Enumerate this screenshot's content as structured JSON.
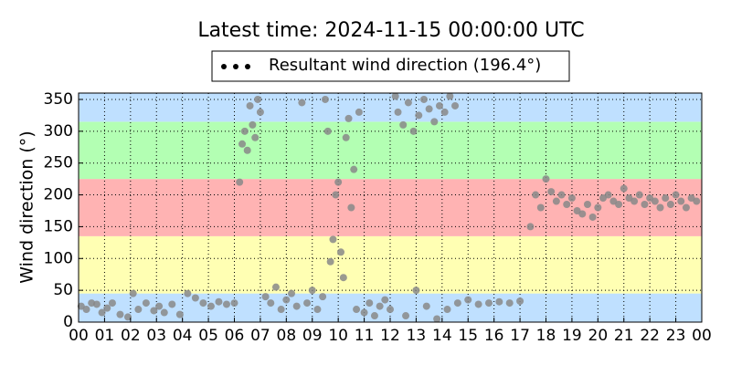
{
  "chart_data": {
    "type": "scatter",
    "title": "Latest time: 2024-11-15 00:00:00 UTC",
    "ylabel": "Wind direction (°)",
    "xlim": [
      0,
      24
    ],
    "ylim": [
      0,
      360
    ],
    "xticks": [
      {
        "value": 0,
        "label": "00"
      },
      {
        "value": 1,
        "label": "01"
      },
      {
        "value": 2,
        "label": "02"
      },
      {
        "value": 3,
        "label": "03"
      },
      {
        "value": 4,
        "label": "04"
      },
      {
        "value": 5,
        "label": "05"
      },
      {
        "value": 6,
        "label": "06"
      },
      {
        "value": 7,
        "label": "07"
      },
      {
        "value": 8,
        "label": "08"
      },
      {
        "value": 9,
        "label": "09"
      },
      {
        "value": 10,
        "label": "10"
      },
      {
        "value": 11,
        "label": "11"
      },
      {
        "value": 12,
        "label": "12"
      },
      {
        "value": 13,
        "label": "13"
      },
      {
        "value": 14,
        "label": "14"
      },
      {
        "value": 15,
        "label": "15"
      },
      {
        "value": 16,
        "label": "16"
      },
      {
        "value": 17,
        "label": "17"
      },
      {
        "value": 18,
        "label": "18"
      },
      {
        "value": 19,
        "label": "19"
      },
      {
        "value": 20,
        "label": "20"
      },
      {
        "value": 21,
        "label": "21"
      },
      {
        "value": 22,
        "label": "22"
      },
      {
        "value": 23,
        "label": "23"
      },
      {
        "value": 24,
        "label": "00"
      }
    ],
    "yticks": [
      0,
      50,
      100,
      150,
      200,
      250,
      300,
      350
    ],
    "grid": true,
    "legend_position": "top",
    "legend_marker_color": "#000000",
    "bands": [
      {
        "from": 0,
        "to": 45,
        "color": "#bfe0ff"
      },
      {
        "from": 45,
        "to": 135,
        "color": "#ffffb3"
      },
      {
        "from": 135,
        "to": 225,
        "color": "#ffb3b3"
      },
      {
        "from": 225,
        "to": 315,
        "color": "#b3ffb3"
      },
      {
        "from": 315,
        "to": 360,
        "color": "#bfe0ff"
      }
    ],
    "series": [
      {
        "name": "Resultant wind direction (196.4°)",
        "color": "#888888",
        "x": [
          0.1,
          0.3,
          0.5,
          0.7,
          0.9,
          1.1,
          1.3,
          1.6,
          1.9,
          2.1,
          2.3,
          2.6,
          2.9,
          3.1,
          3.3,
          3.6,
          3.9,
          4.2,
          4.5,
          4.8,
          5.1,
          5.4,
          5.7,
          6.0,
          6.2,
          6.3,
          6.4,
          6.5,
          6.6,
          6.7,
          6.8,
          6.9,
          7.0,
          7.2,
          7.4,
          7.6,
          7.8,
          8.0,
          8.2,
          8.4,
          8.6,
          8.8,
          9.0,
          9.2,
          9.4,
          9.5,
          9.6,
          9.7,
          9.8,
          9.9,
          10.0,
          10.1,
          10.2,
          10.3,
          10.4,
          10.5,
          10.6,
          10.7,
          10.8,
          11.0,
          11.2,
          11.4,
          11.6,
          11.8,
          12.0,
          12.2,
          12.3,
          12.5,
          12.7,
          12.9,
          13.1,
          13.3,
          13.5,
          13.7,
          13.9,
          14.1,
          14.3,
          14.5,
          12.6,
          13.0,
          13.4,
          13.8,
          14.2,
          14.6,
          15.0,
          15.4,
          15.8,
          16.2,
          16.6,
          17.0,
          17.4,
          17.6,
          17.8,
          18.0,
          18.2,
          18.4,
          18.6,
          18.8,
          19.0,
          19.2,
          19.4,
          19.6,
          19.8,
          20.0,
          20.2,
          20.4,
          20.6,
          20.8,
          21.0,
          21.2,
          21.4,
          21.6,
          21.8,
          22.0,
          22.2,
          22.4,
          22.6,
          22.8,
          23.0,
          23.2,
          23.4,
          23.6,
          23.8
        ],
        "values": [
          25,
          20,
          30,
          28,
          15,
          22,
          30,
          12,
          8,
          45,
          20,
          30,
          18,
          25,
          15,
          28,
          12,
          45,
          38,
          30,
          25,
          32,
          28,
          30,
          220,
          280,
          300,
          270,
          340,
          310,
          290,
          350,
          330,
          40,
          30,
          55,
          20,
          35,
          45,
          25,
          345,
          30,
          50,
          20,
          40,
          350,
          300,
          95,
          130,
          200,
          220,
          110,
          70,
          290,
          320,
          180,
          240,
          20,
          330,
          15,
          30,
          10,
          25,
          35,
          20,
          355,
          330,
          310,
          345,
          300,
          325,
          350,
          335,
          315,
          340,
          330,
          355,
          340,
          10,
          50,
          25,
          5,
          20,
          30,
          35,
          28,
          30,
          32,
          30,
          33,
          150,
          200,
          180,
          225,
          205,
          190,
          200,
          185,
          195,
          175,
          170,
          185,
          165,
          180,
          195,
          200,
          190,
          185,
          210,
          195,
          190,
          200,
          185,
          195,
          190,
          180,
          195,
          185,
          200,
          190,
          180,
          195,
          190
        ]
      }
    ]
  }
}
